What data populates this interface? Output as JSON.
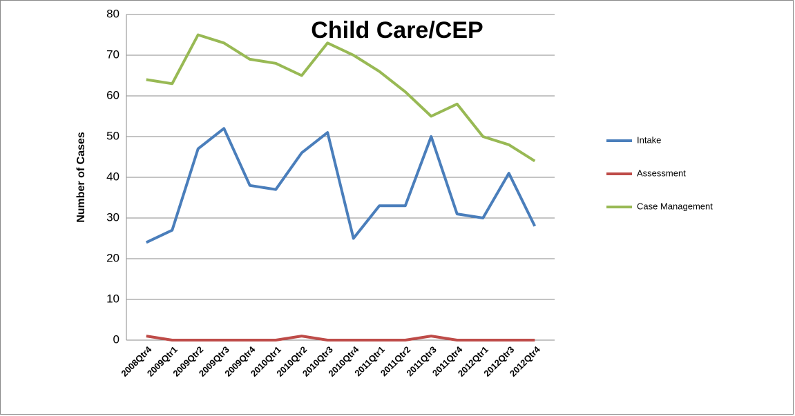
{
  "chart_data": {
    "type": "line",
    "title": "Child Care/CEP",
    "ylabel": "Number of Cases",
    "categories": [
      "2008Qtr4",
      "2009Qtr1",
      "2009Qtr2",
      "2009Qtr3",
      "2009Qtr4",
      "2010Qtr1",
      "2010Qtr2",
      "2010Qtr3",
      "2010Qtr4",
      "2011Qtr1",
      "2011Qtr2",
      "2011Qtr3",
      "2011Qtr4",
      "2012Qtr1",
      "2012Qtr3",
      "2012Qtr4"
    ],
    "series": [
      {
        "name": "Intake",
        "color": "#4a7ebb",
        "values": [
          24,
          27,
          47,
          52,
          38,
          37,
          46,
          51,
          25,
          33,
          33,
          50,
          31,
          30,
          41,
          28
        ]
      },
      {
        "name": "Assessment",
        "color": "#be4b48",
        "values": [
          1,
          0,
          0,
          0,
          0,
          0,
          1,
          0,
          0,
          0,
          0,
          1,
          0,
          0,
          0,
          0
        ]
      },
      {
        "name": "Case Management",
        "color": "#98b954",
        "values": [
          64,
          63,
          75,
          73,
          69,
          68,
          65,
          73,
          70,
          66,
          61,
          55,
          58,
          50,
          48,
          44
        ]
      }
    ],
    "ylim": [
      0,
      80
    ],
    "yticks": [
      0,
      10,
      20,
      30,
      40,
      50,
      60,
      70,
      80
    ],
    "grid": true,
    "legend": "right"
  }
}
